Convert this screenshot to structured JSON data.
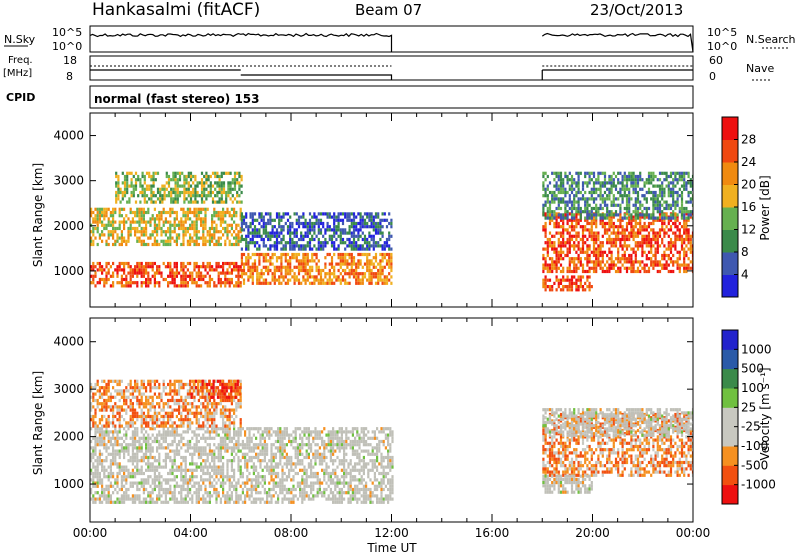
{
  "header": {
    "station": "Hankasalmi (fitACF)",
    "beam": "Beam 07",
    "date": "23/Oct/2013"
  },
  "noise_panel": {
    "left_label": "N.Sky",
    "left_ticks": [
      "10^5",
      "10^0"
    ],
    "right_label": "N.Search",
    "right_ticks": [
      "10^5",
      "10^0"
    ]
  },
  "freq_panel": {
    "left_label_1": "Freq.",
    "left_label_2": "[MHz]",
    "left_ticks": [
      "18",
      "8"
    ],
    "right_label": "Nave",
    "right_ticks": [
      "60",
      "0"
    ]
  },
  "cpid_panel": {
    "label": "CPID",
    "text": "normal (fast stereo) 153"
  },
  "colors": {
    "power": [
      "#2222dd",
      "#3f58b0",
      "#3a8a4a",
      "#66b050",
      "#f0b020",
      "#f08a10",
      "#f04810",
      "#ee1010"
    ],
    "velocity": [
      "#ee1010",
      "#f25010",
      "#f59020",
      "#c8c8c0",
      "#c8c8c0",
      "#70c040",
      "#3a8a4a",
      "#2a5aa8",
      "#2222cc"
    ],
    "gray": "#c0c0b8"
  },
  "chart_data": [
    {
      "type": "heatmap",
      "panel": "power",
      "ylabel": "Slant Range [km]",
      "ylim": [
        200,
        4500
      ],
      "y_ticks": [
        "4000",
        "3000",
        "2000",
        "1000"
      ],
      "x_ticks": [
        "00:00",
        "04:00",
        "08:00",
        "12:00",
        "16:00",
        "20:00",
        "00:00"
      ],
      "xlim_hours": [
        0,
        24
      ],
      "colorbar": {
        "label": "Power [dB]",
        "ticks": [
          "28",
          "24",
          "20",
          "16",
          "12",
          "8",
          "4"
        ],
        "range": [
          0,
          32
        ]
      },
      "data_intervals_hours": [
        [
          0,
          12
        ],
        [
          18,
          24
        ]
      ],
      "features": [
        {
          "t": [
            0,
            6
          ],
          "range_km": [
            700,
            1200
          ],
          "level_db": 28
        },
        {
          "t": [
            0,
            6
          ],
          "range_km": [
            1600,
            2400
          ],
          "level_db": 20
        },
        {
          "t": [
            1,
            6
          ],
          "range_km": [
            2500,
            3200
          ],
          "level_db": 16
        },
        {
          "t": [
            6,
            12
          ],
          "range_km": [
            700,
            1400
          ],
          "level_db": 22
        },
        {
          "t": [
            6,
            12
          ],
          "range_km": [
            1500,
            2300
          ],
          "level_db": 8
        },
        {
          "t": [
            18,
            24
          ],
          "range_km": [
            1000,
            2300
          ],
          "level_db": 26
        },
        {
          "t": [
            18,
            20
          ],
          "range_km": [
            600,
            900
          ],
          "level_db": 28
        },
        {
          "t": [
            18,
            24
          ],
          "range_km": [
            2200,
            3200
          ],
          "level_db": 12
        }
      ]
    },
    {
      "type": "heatmap",
      "panel": "velocity",
      "ylabel": "Slant Range [km]",
      "xlabel": "Time UT",
      "ylim": [
        200,
        4500
      ],
      "y_ticks": [
        "4000",
        "3000",
        "2000",
        "1000"
      ],
      "x_ticks": [
        "00:00",
        "04:00",
        "08:00",
        "12:00",
        "16:00",
        "20:00",
        "00:00"
      ],
      "xlim_hours": [
        0,
        24
      ],
      "colorbar": {
        "label": "Velocity [m s⁻¹]",
        "ticks": [
          "1000",
          "500",
          "100",
          "25",
          "-25",
          "-100",
          "-500",
          "-1000"
        ]
      },
      "data_intervals_hours": [
        [
          0,
          12
        ],
        [
          18,
          24
        ]
      ],
      "features": [
        {
          "t": [
            0,
            12
          ],
          "range_km": [
            600,
            2200
          ],
          "category": "ground"
        },
        {
          "t": [
            0,
            6
          ],
          "range_km": [
            2200,
            3200
          ],
          "category": "-100"
        },
        {
          "t": [
            4,
            6
          ],
          "range_km": [
            2800,
            3200
          ],
          "category": "-500"
        },
        {
          "t": [
            18,
            24
          ],
          "range_km": [
            1200,
            2500
          ],
          "category": "-100"
        },
        {
          "t": [
            18,
            24
          ],
          "range_km": [
            2000,
            2600
          ],
          "category": "ground"
        },
        {
          "t": [
            18,
            20
          ],
          "range_km": [
            800,
            1200
          ],
          "category": "ground"
        }
      ]
    }
  ],
  "xlabel": "Time UT"
}
